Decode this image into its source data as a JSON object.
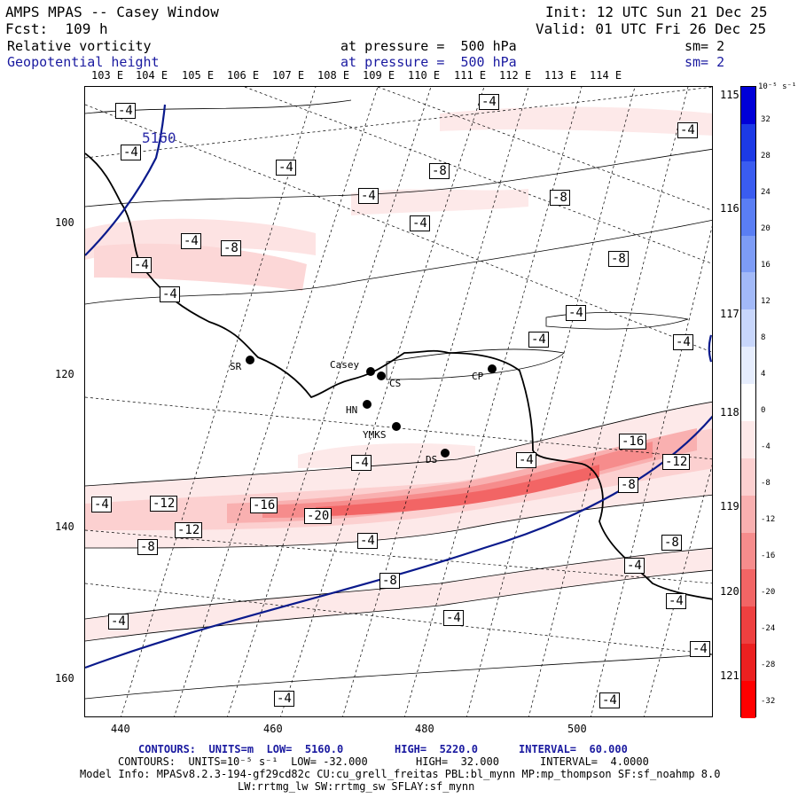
{
  "header": {
    "title": "AMPS MPAS -- Casey Window",
    "init": "Init: 12 UTC Sun 21 Dec 25",
    "fcst": "Fcst:  109 h",
    "valid": "Valid: 01 UTC Fri 26 Dec 25",
    "field1_name": "Relative vorticity",
    "field1_level": "at pressure =  500 hPa",
    "field1_sm": "sm= 2",
    "field2_name": "Geopotential height",
    "field2_level": "at pressure =  500 hPa",
    "field2_sm": "sm= 2"
  },
  "axes": {
    "top_lon": [
      "103 E",
      "104 E",
      "105 E",
      "106 E",
      "107 E",
      "108 E",
      "109 E",
      "110 E",
      "111 E",
      "112 E",
      "113 E",
      "114 E"
    ],
    "right_lon": [
      "115 E",
      "116 E",
      "117 E",
      "118 E",
      "119 E",
      "120 E",
      "121 E"
    ],
    "left_y": [
      "100",
      "120",
      "140",
      "160"
    ],
    "bottom_x": [
      "440",
      "460",
      "480",
      "500"
    ]
  },
  "colorbar": {
    "unit": "10⁻⁵ s⁻¹",
    "labels": [
      "32",
      "28",
      "24",
      "20",
      "16",
      "12",
      "8",
      "4",
      "0",
      "-4",
      "-8",
      "-12",
      "-16",
      "-20",
      "-24",
      "-28",
      "-32"
    ],
    "colors": [
      "#0000d8",
      "#1c3ae6",
      "#3a5cf0",
      "#5a7ef4",
      "#7d9cf6",
      "#a2b9f8",
      "#c8d6fb",
      "#e6edfd",
      "#ffffff",
      "#fde9e9",
      "#fcd0d0",
      "#f9b0b0",
      "#f68c8c",
      "#f26565",
      "#ee4040",
      "#eb2020",
      "#ff0000"
    ]
  },
  "stations": [
    {
      "name": "SR"
    },
    {
      "name": "Casey"
    },
    {
      "name": "CS"
    },
    {
      "name": "CP"
    },
    {
      "name": "HN"
    },
    {
      "name": "YMKS"
    },
    {
      "name": "DS"
    }
  ],
  "contour_labels": {
    "height": "5160",
    "vort": [
      "-4",
      "-4",
      "-4",
      "-4",
      "-4",
      "-8",
      "-4",
      "-8",
      "-4",
      "-8",
      "-4",
      "-8",
      "-4",
      "-4",
      "-4",
      "-4",
      "-4",
      "-4",
      "-16",
      "-4",
      "-12",
      "-8",
      "-12",
      "-16",
      "-20",
      "-8",
      "-12",
      "-4",
      "-8",
      "-4",
      "-8",
      "-4",
      "-4",
      "-4",
      "-4",
      "-4",
      "-4",
      "-4"
    ]
  },
  "footer": {
    "line1_a": "CONTOURS:  UNITS=m  LOW=  5160.0",
    "line1_b": "HIGH=  5220.0",
    "line1_c": "INTERVAL=  60.000",
    "line2_a": "CONTOURS:  UNITS=10⁻⁵ s⁻¹  LOW= -32.000",
    "line2_b": "HIGH=  32.000",
    "line2_c": "INTERVAL=  4.0000",
    "line3": "Model Info: MPASv8.2.3-194-gf29cd82c CU:cu_grell_freitas PBL:bl_mynn MP:mp_thompson SF:sf_noahmp 8.0",
    "line4": "LW:rrtmg_lw SW:rrtmg_sw SFLAY:sf_mynn"
  }
}
